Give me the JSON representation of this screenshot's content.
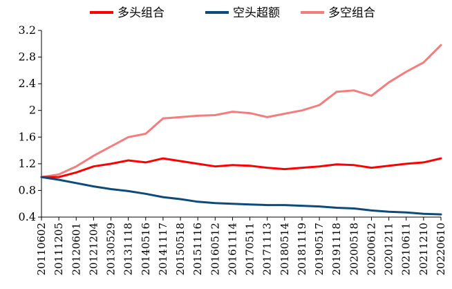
{
  "chart_data": {
    "type": "line",
    "title": "",
    "xlabel": "",
    "ylabel": "",
    "ylim": [
      0.4,
      3.2
    ],
    "yticks": [
      "3.2",
      "2.8",
      "2.4",
      "2",
      "1.6",
      "1.2",
      "0.8",
      "0.4"
    ],
    "grid": false,
    "legend_position": "top",
    "categories": [
      "20110602",
      "20111205",
      "20120601",
      "20121204",
      "20130529",
      "20131118",
      "20140516",
      "20141117",
      "20150518",
      "20151116",
      "20160512",
      "20161114",
      "20170511",
      "20171113",
      "20180514",
      "20181119",
      "20190517",
      "20191118",
      "20200518",
      "20200612",
      "20201211",
      "20210611",
      "20211210",
      "20220610"
    ],
    "series": [
      {
        "name": "多头组合",
        "color": "#ff0000",
        "values": [
          1.0,
          1.0,
          1.07,
          1.16,
          1.2,
          1.25,
          1.22,
          1.28,
          1.24,
          1.2,
          1.16,
          1.18,
          1.17,
          1.14,
          1.12,
          1.14,
          1.16,
          1.19,
          1.18,
          1.14,
          1.17,
          1.2,
          1.22,
          1.28
        ]
      },
      {
        "name": "空头超额",
        "color": "#0b4a7a",
        "values": [
          1.0,
          0.96,
          0.91,
          0.86,
          0.82,
          0.79,
          0.75,
          0.7,
          0.67,
          0.63,
          0.61,
          0.6,
          0.59,
          0.58,
          0.58,
          0.57,
          0.56,
          0.54,
          0.53,
          0.5,
          0.48,
          0.47,
          0.45,
          0.44
        ]
      },
      {
        "name": "多空组合",
        "color": "#f47c7c",
        "values": [
          1.0,
          1.04,
          1.16,
          1.32,
          1.46,
          1.6,
          1.65,
          1.88,
          1.9,
          1.92,
          1.93,
          1.98,
          1.96,
          1.9,
          1.95,
          2.0,
          2.08,
          2.28,
          2.3,
          2.22,
          2.42,
          2.58,
          2.72,
          2.98
        ]
      }
    ]
  }
}
